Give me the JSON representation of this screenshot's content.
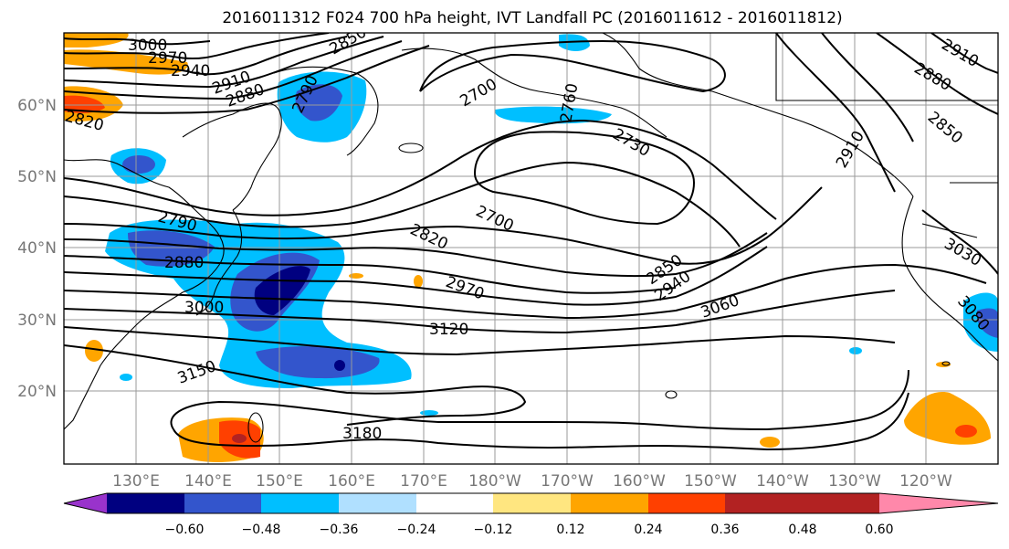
{
  "title": "2016011312 F024 700 hPa height, IVT Landfall PC (2016011612 - 2016011812)",
  "latitude_labels": [
    "60°N",
    "50°N",
    "40°N",
    "30°N",
    "20°N"
  ],
  "longitude_labels": [
    "130°E",
    "140°E",
    "150°E",
    "160°E",
    "170°E",
    "180°W",
    "170°W",
    "160°W",
    "150°W",
    "140°W",
    "130°W",
    "120°W"
  ],
  "colorbar": {
    "ticks": [
      "−0.60",
      "−0.48",
      "−0.36",
      "−0.24",
      "−0.12",
      "0.12",
      "0.24",
      "0.36",
      "0.48",
      "0.60"
    ],
    "colors": [
      "#9933cc",
      "#000080",
      "#3355cc",
      "#00bfff",
      "#b0e0ff",
      "#ffffff",
      "#ffe680",
      "#ffa500",
      "#ff4000",
      "#b22222",
      "#ff88aa"
    ]
  },
  "contour_labels": [
    "3000",
    "2970",
    "2940",
    "2910",
    "2880",
    "2850",
    "2820",
    "2790",
    "2700",
    "2760",
    "2730",
    "2910",
    "2880",
    "2850",
    "2790",
    "2880",
    "3000",
    "3150",
    "3120",
    "2820",
    "2700",
    "2970",
    "3060",
    "2850",
    "2940",
    "3180",
    "3030",
    "3080",
    "2910"
  ]
}
